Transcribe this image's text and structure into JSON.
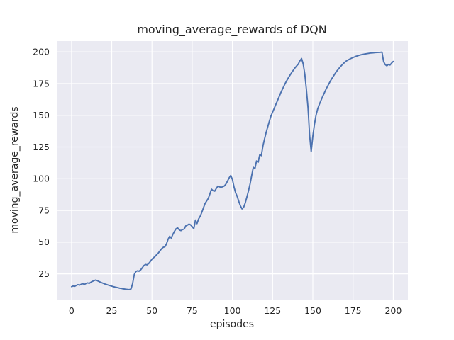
{
  "figure": {
    "title": "moving_average_rewards of DQN",
    "x_axis_label": "episodes",
    "y_axis_label": "moving_average_rewards"
  },
  "colors": {
    "figure_background": "#ffffff",
    "axes_background": "#eaeaf2",
    "grid": "#ffffff",
    "line": "#4c72b0",
    "text": "#262626"
  },
  "chart_data": {
    "type": "line",
    "title": "moving_average_rewards of DQN",
    "xlabel": "episodes",
    "ylabel": "moving_average_rewards",
    "x_ticks": [
      0,
      25,
      50,
      75,
      100,
      125,
      150,
      175,
      200
    ],
    "y_ticks": [
      25,
      50,
      75,
      100,
      125,
      150,
      175,
      200
    ],
    "xlim": [
      -9.2,
      209.1
    ],
    "ylim": [
      4.7,
      208.5
    ],
    "grid": true,
    "legend_visible": false,
    "series": [
      {
        "name": "moving_average_rewards",
        "x_start": 0,
        "x_step": 1,
        "y": [
          14.9,
          15.4,
          15.2,
          15.9,
          16.5,
          16.1,
          16.8,
          17.2,
          16.7,
          17.4,
          17.9,
          17.5,
          18.3,
          19.1,
          19.6,
          20.1,
          19.6,
          19.0,
          18.4,
          17.9,
          17.4,
          16.9,
          16.5,
          16.1,
          15.7,
          15.3,
          14.9,
          14.6,
          14.3,
          14.0,
          13.7,
          13.5,
          13.2,
          13.0,
          12.8,
          12.7,
          12.6,
          13.2,
          17.5,
          24.5,
          26.8,
          27.4,
          27.1,
          28.2,
          29.8,
          31.6,
          32.4,
          32.1,
          33.2,
          34.8,
          36.6,
          37.7,
          38.8,
          40.2,
          41.5,
          43.2,
          44.8,
          45.9,
          46.3,
          48.5,
          52.2,
          54.6,
          53.2,
          56.1,
          58.6,
          60.6,
          61.2,
          59.6,
          59.1,
          59.9,
          60.3,
          62.8,
          63.4,
          64.2,
          63.6,
          62.2,
          60.6,
          67.4,
          64.6,
          68.3,
          70.5,
          73.5,
          77.0,
          80.5,
          82.5,
          84.5,
          88.0,
          91.8,
          90.6,
          90.2,
          92.3,
          94.2,
          93.6,
          93.2,
          93.7,
          94.3,
          95.8,
          98.2,
          100.8,
          102.6,
          99.5,
          93.5,
          89.0,
          86.0,
          82.0,
          78.5,
          76.2,
          77.5,
          81.0,
          85.5,
          90.5,
          96.0,
          102.5,
          109.0,
          108.0,
          114.0,
          113.0,
          119.0,
          118.2,
          126.0,
          131.5,
          136.5,
          141.0,
          145.5,
          149.5,
          152.5,
          155.5,
          158.5,
          161.5,
          164.5,
          167.5,
          170.3,
          173.0,
          175.5,
          177.8,
          180.0,
          182.0,
          184.0,
          185.8,
          187.5,
          189.0,
          190.5,
          193.0,
          194.8,
          190.5,
          182.5,
          170.5,
          156.0,
          134.0,
          121.3,
          133.5,
          143.0,
          150.0,
          155.0,
          158.5,
          161.5,
          164.5,
          167.3,
          170.0,
          172.5,
          174.9,
          177.2,
          179.3,
          181.3,
          183.2,
          185.0,
          186.6,
          188.1,
          189.5,
          190.8,
          192.0,
          193.0,
          193.7,
          194.4,
          195.0,
          195.6,
          196.1,
          196.6,
          197.0,
          197.4,
          197.7,
          198.0,
          198.3,
          198.5,
          198.7,
          198.9,
          199.1,
          199.2,
          199.35,
          199.45,
          199.55,
          199.65,
          199.7,
          199.8,
          192.3,
          190.0,
          189.0,
          190.2,
          189.6,
          191.2,
          192.5
        ]
      }
    ]
  }
}
